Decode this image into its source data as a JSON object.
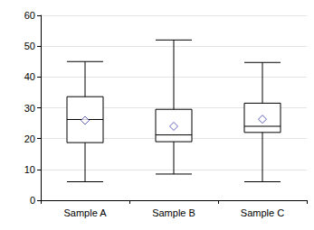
{
  "chart_data": {
    "type": "boxplot",
    "categories": [
      "Sample A",
      "Sample B",
      "Sample C"
    ],
    "series": [
      {
        "type": "boxplot",
        "color": "#000000",
        "values": [
          [
            6,
            18.7,
            26.2,
            33.6,
            45
          ],
          [
            8.5,
            19,
            21.2,
            29.5,
            52
          ],
          [
            6,
            22,
            24,
            31.5,
            44.7
          ]
        ]
      },
      {
        "type": "scatter",
        "marker": "diamond",
        "color": "#3a3aa8",
        "values": [
          25.9,
          24,
          26.3
        ]
      }
    ],
    "ylim": [
      0,
      60
    ],
    "yticks": [
      0,
      10,
      20,
      30,
      40,
      50,
      60
    ],
    "grid": true
  }
}
